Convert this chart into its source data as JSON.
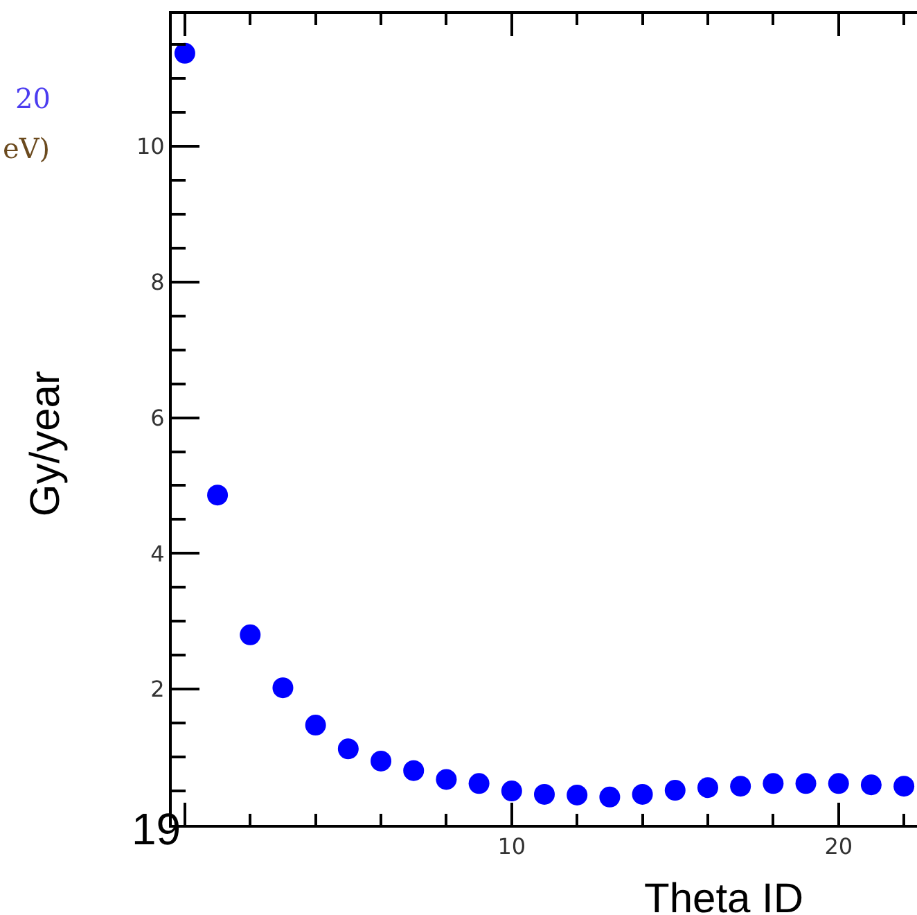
{
  "chart_data": {
    "type": "scatter",
    "xlabel": "Theta ID",
    "ylabel": "Gy/year",
    "x": [
      0,
      1,
      2,
      3,
      4,
      5,
      6,
      7,
      8,
      9,
      10,
      11,
      12,
      13,
      14,
      15,
      16,
      17,
      18,
      19,
      20,
      21,
      22
    ],
    "series": [
      {
        "color": "#0000ff",
        "values": [
          11.37,
          4.86,
          2.8,
          2.02,
          1.47,
          1.12,
          0.94,
          0.8,
          0.67,
          0.61,
          0.5,
          0.45,
          0.44,
          0.41,
          0.45,
          0.51,
          0.55,
          0.57,
          0.61,
          0.61,
          0.61,
          0.59,
          0.57
        ]
      }
    ],
    "xlim": [
      -0.4,
      22.4
    ],
    "ylim": [
      0,
      11.95
    ],
    "xticks": [
      {
        "value": 0,
        "label": null
      },
      10,
      20
    ],
    "yticks": [
      {
        "value": 0,
        "label": null
      },
      2,
      4,
      6,
      8,
      10
    ],
    "marker": "circle",
    "annotations": [
      "20",
      "eV)",
      "19"
    ]
  }
}
